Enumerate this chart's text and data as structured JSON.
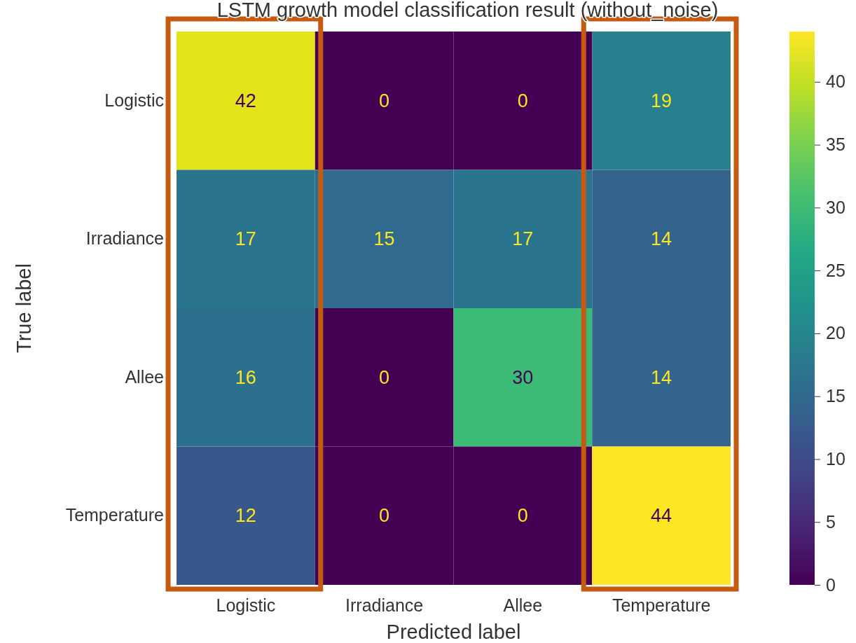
{
  "chart_data": {
    "type": "heatmap",
    "title": "LSTM growth model classification result (without_noise)",
    "xlabel": "Predicted label",
    "ylabel": "True label",
    "categories": [
      "Logistic",
      "Irradiance",
      "Allee",
      "Temperature"
    ],
    "y_categories": [
      "Logistic",
      "Irradiance",
      "Allee",
      "Temperature"
    ],
    "cells": [
      [
        42,
        0,
        0,
        19
      ],
      [
        17,
        15,
        17,
        14
      ],
      [
        16,
        0,
        30,
        14
      ],
      [
        12,
        0,
        0,
        44
      ]
    ],
    "data_labels": true,
    "clim": [
      0,
      44
    ],
    "cticks": [
      0,
      5,
      10,
      15,
      20,
      25,
      30,
      35,
      40
    ]
  }
}
